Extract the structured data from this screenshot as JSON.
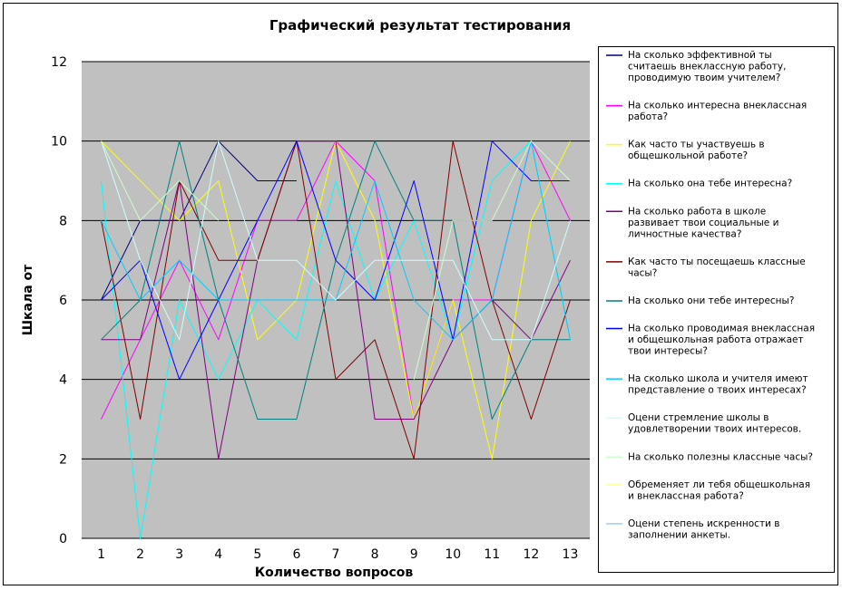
{
  "chart_data": {
    "type": "line",
    "title": "Графический результат тестирования",
    "xlabel": "Количество вопросов",
    "ylabel": "Шкала от",
    "ylim": [
      0,
      12
    ],
    "y_ticks": [
      0,
      2,
      4,
      6,
      8,
      10,
      12
    ],
    "grid": true,
    "legend_position": "right",
    "plot_background": "#c0c0c0",
    "categories": [
      "1",
      "2",
      "3",
      "4",
      "5",
      "6",
      "7",
      "8",
      "9",
      "10",
      "11",
      "12",
      "13"
    ],
    "series": [
      {
        "name": "На сколько эффективной ты считаешь внеклассную работу, проводимую твоим учителем?",
        "color": "#000080",
        "values": [
          6,
          8,
          8,
          10,
          9,
          9,
          null,
          null,
          null,
          null,
          null,
          null,
          null
        ]
      },
      {
        "name": "На сколько интересна внеклассная работа?",
        "color": "#ff00ff",
        "values": [
          3,
          5,
          7,
          5,
          8,
          8,
          10,
          9,
          3,
          6,
          6,
          10,
          8
        ]
      },
      {
        "name": "Как часто ты участвуешь в общешкольной работе?",
        "color": "#ffff00",
        "values": [
          10,
          9,
          8,
          9,
          5,
          6,
          10,
          8,
          3,
          6,
          2,
          8,
          10
        ]
      },
      {
        "name": "На сколько она тебе интересна?",
        "color": "#00ffff",
        "values": [
          9,
          0,
          6,
          4,
          6,
          5,
          9,
          6,
          8,
          5,
          9,
          10,
          5
        ]
      },
      {
        "name": "На сколько работа в школе развивает твои социальные и личностные качества?",
        "color": "#800080",
        "values": [
          5,
          5,
          9,
          2,
          7,
          10,
          10,
          3,
          3,
          5,
          6,
          5,
          7
        ]
      },
      {
        "name": "Как часто ты посещаешь классные часы?",
        "color": "#800000",
        "values": [
          8,
          3,
          9,
          7,
          7,
          10,
          4,
          5,
          2,
          10,
          6,
          3,
          6
        ]
      },
      {
        "name": "На сколько они тебе интересны?",
        "color": "#008080",
        "values": [
          5,
          6,
          10,
          6,
          3,
          3,
          7,
          10,
          8,
          8,
          3,
          5,
          5
        ]
      },
      {
        "name": "На сколько проводимая внеклассная и общешкольная работа отражает твои интересы?",
        "color": "#0000ff",
        "values": [
          6,
          7,
          4,
          6,
          8,
          10,
          7,
          6,
          9,
          5,
          10,
          9,
          9
        ]
      },
      {
        "name": "На сколько школа и учителя имеют представление о твоих интересах?",
        "color": "#00ccff",
        "values": [
          8,
          6,
          7,
          6,
          6,
          6,
          6,
          9,
          6,
          5,
          6,
          10,
          5
        ]
      },
      {
        "name": "Оцени стремление школы в удовлетворении твоих интересов.",
        "color": "#ccffff",
        "values": [
          10,
          7,
          5,
          10,
          7,
          7,
          6,
          7,
          7,
          7,
          5,
          5,
          8
        ]
      },
      {
        "name": "На сколько полезны классные часы?",
        "color": "#ccffcc",
        "values": [
          10,
          8,
          9,
          8,
          null,
          null,
          null,
          null,
          4,
          8,
          8,
          10,
          9
        ]
      },
      {
        "name": "Обременяет ли тебя общешкольная и внеклассная работа?",
        "color": "#ffff99",
        "values": [
          null,
          null,
          null,
          null,
          null,
          null,
          null,
          null,
          null,
          null,
          null,
          null,
          null
        ]
      },
      {
        "name": "Оцени степень искренности в заполнении анкеты.",
        "color": "#99ccff",
        "values": [
          null,
          null,
          null,
          null,
          null,
          null,
          null,
          null,
          null,
          null,
          null,
          null,
          null
        ]
      }
    ]
  }
}
